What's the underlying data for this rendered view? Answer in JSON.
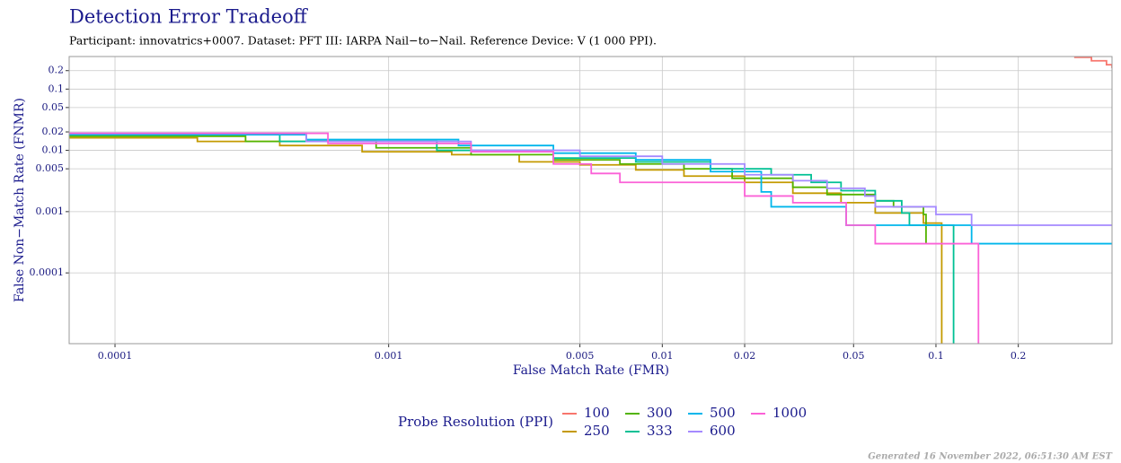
{
  "chart_data": {
    "type": "step",
    "title": "Detection Error Tradeoff",
    "subtitle": "Participant: innovatrics+0007. Dataset: PFT III: IARPA Nail−to−Nail. Reference Device: V (1 000 PPI).",
    "x_label": "False Match Rate (FMR)",
    "y_label": "False Non−Match Rate (FNMR)",
    "legend_title": "Probe Resolution (PPI)",
    "footer": "Generated 16 November 2022, 06:51:30 AM EST",
    "x_log": true,
    "y_log": true,
    "grid": true,
    "legend_position": "bottom",
    "xlim": [
      6.8e-05,
      0.44
    ],
    "ylim": [
      7e-06,
      0.34
    ],
    "xticks": [
      0.0001,
      0.001,
      0.005,
      0.01,
      0.02,
      0.05,
      0.1,
      0.2
    ],
    "yticks": [
      0.0001,
      0.001,
      0.005,
      0.01,
      0.02,
      0.05,
      0.1,
      0.2
    ],
    "series": [
      {
        "name": "100",
        "color": "#F8766D",
        "x": [
          0.32,
          0.37,
          0.42,
          0.44
        ],
        "values": [
          0.33,
          0.29,
          0.25,
          0.22
        ]
      },
      {
        "name": "250",
        "color": "#C49A00",
        "x": [
          6.8e-05,
          0.0002,
          0.0004,
          0.0008,
          0.0017,
          0.003,
          0.005,
          0.008,
          0.012,
          0.02,
          0.03,
          0.045,
          0.06,
          0.09,
          0.105
        ],
        "values": [
          0.016,
          0.014,
          0.012,
          0.0095,
          0.0085,
          0.0065,
          0.0058,
          0.0048,
          0.0038,
          0.003,
          0.002,
          0.0014,
          0.00095,
          0.00065,
          7e-06
        ]
      },
      {
        "name": "300",
        "color": "#53B400",
        "x": [
          6.8e-05,
          0.0003,
          0.0009,
          0.002,
          0.004,
          0.007,
          0.012,
          0.018,
          0.03,
          0.04,
          0.06,
          0.07,
          0.09,
          0.092
        ],
        "values": [
          0.017,
          0.014,
          0.011,
          0.0085,
          0.007,
          0.006,
          0.005,
          0.0035,
          0.0025,
          0.0019,
          0.0015,
          0.0012,
          0.0009,
          0.0003
        ]
      },
      {
        "name": "333",
        "color": "#00C094",
        "x": [
          6.8e-05,
          0.0004,
          0.0015,
          0.004,
          0.008,
          0.015,
          0.025,
          0.035,
          0.045,
          0.06,
          0.075,
          0.08,
          0.115,
          0.116
        ],
        "values": [
          0.018,
          0.014,
          0.01,
          0.0075,
          0.0065,
          0.005,
          0.004,
          0.003,
          0.0022,
          0.0015,
          0.00095,
          0.0006,
          0.0006,
          7e-06
        ]
      },
      {
        "name": "500",
        "color": "#00B6EB",
        "x": [
          6.8e-05,
          0.0005,
          0.0018,
          0.004,
          0.008,
          0.015,
          0.023,
          0.025,
          0.045,
          0.047,
          0.13,
          0.135,
          0.44
        ],
        "values": [
          0.018,
          0.015,
          0.012,
          0.009,
          0.007,
          0.0045,
          0.0021,
          0.0012,
          0.0012,
          0.0006,
          0.0006,
          0.0003,
          0.0003
        ]
      },
      {
        "name": "600",
        "color": "#A58AFF",
        "x": [
          6.8e-05,
          0.0005,
          0.002,
          0.005,
          0.01,
          0.02,
          0.03,
          0.04,
          0.055,
          0.06,
          0.1,
          0.135,
          0.44
        ],
        "values": [
          0.019,
          0.014,
          0.01,
          0.008,
          0.006,
          0.004,
          0.0032,
          0.0024,
          0.0018,
          0.0012,
          0.0009,
          0.0006,
          0.0006
        ]
      },
      {
        "name": "1000",
        "color": "#FB61D7",
        "x": [
          6.8e-05,
          0.0006,
          0.002,
          0.004,
          0.0055,
          0.007,
          0.015,
          0.02,
          0.03,
          0.045,
          0.047,
          0.058,
          0.06,
          0.142,
          0.143
        ],
        "values": [
          0.019,
          0.013,
          0.0095,
          0.006,
          0.0042,
          0.003,
          0.003,
          0.0018,
          0.0014,
          0.0014,
          0.0006,
          0.0006,
          0.0003,
          0.0003,
          7e-06
        ]
      }
    ]
  }
}
